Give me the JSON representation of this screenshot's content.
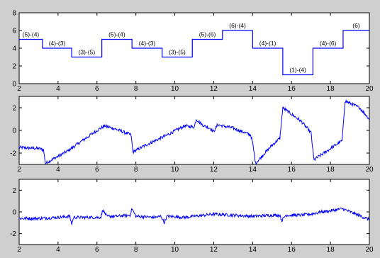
{
  "figure": {
    "background": "#cfcfcf",
    "line_color": "#0000ff",
    "axes_bg": "#ffffff"
  },
  "chart_data": [
    {
      "type": "line",
      "subtype": "step",
      "xlim": [
        2,
        20
      ],
      "ylim": [
        0,
        8
      ],
      "x_ticks": [
        "2",
        "4",
        "6",
        "8",
        "10",
        "12",
        "14",
        "16",
        "18",
        "20"
      ],
      "y_ticks": [
        "0",
        "2",
        "4",
        "6",
        "8"
      ],
      "steps": [
        {
          "x0": 2.0,
          "x1": 3.2,
          "y": 5,
          "label": "(5)-(4)"
        },
        {
          "x0": 3.2,
          "x1": 4.7,
          "y": 4,
          "label": "(4)-(3)"
        },
        {
          "x0": 4.7,
          "x1": 6.25,
          "y": 3,
          "label": "(3)-(5)"
        },
        {
          "x0": 6.25,
          "x1": 7.8,
          "y": 5,
          "label": "(5)-(4)"
        },
        {
          "x0": 7.8,
          "x1": 9.35,
          "y": 4,
          "label": "(4)-(3)"
        },
        {
          "x0": 9.35,
          "x1": 10.9,
          "y": 3,
          "label": "(3)-(5)"
        },
        {
          "x0": 10.9,
          "x1": 12.45,
          "y": 5,
          "label": "(5)-(6)"
        },
        {
          "x0": 12.45,
          "x1": 14.0,
          "y": 6,
          "label": "(6)-(4)"
        },
        {
          "x0": 14.0,
          "x1": 15.55,
          "y": 4,
          "label": "(4)-(1)"
        },
        {
          "x0": 15.55,
          "x1": 17.1,
          "y": 1,
          "label": "(1)-(4)"
        },
        {
          "x0": 17.1,
          "x1": 18.65,
          "y": 4,
          "label": "(4)-(6)"
        },
        {
          "x0": 18.65,
          "x1": 20.0,
          "y": 6,
          "label": "(6)"
        }
      ]
    },
    {
      "type": "line",
      "xlim": [
        2,
        20
      ],
      "ylim": [
        -3,
        3
      ],
      "x_ticks": [
        "2",
        "4",
        "6",
        "8",
        "10",
        "12",
        "14",
        "16",
        "18",
        "20"
      ],
      "y_ticks": [
        "-2",
        "0",
        "2"
      ],
      "x": [
        2.0,
        3.0,
        3.25,
        3.35,
        4.5,
        5.5,
        6.0,
        6.4,
        7.0,
        7.75,
        7.85,
        8.5,
        9.5,
        10.5,
        11.0,
        11.1,
        11.4,
        11.8,
        12.0,
        12.2,
        13.0,
        13.9,
        14.0,
        14.15,
        15.0,
        15.4,
        15.55,
        16.5,
        17.0,
        17.15,
        18.0,
        18.6,
        18.75,
        19.5,
        20.0
      ],
      "y": [
        -1.5,
        -1.6,
        -1.7,
        -2.9,
        -1.8,
        -0.6,
        0.0,
        0.4,
        0.1,
        -0.4,
        -1.9,
        -1.3,
        -0.5,
        0.4,
        0.3,
        1.0,
        0.5,
        0.2,
        -0.1,
        0.5,
        0.2,
        -0.4,
        -1.1,
        -2.9,
        -1.3,
        -0.7,
        2.0,
        0.8,
        -0.2,
        -2.6,
        -1.6,
        -0.9,
        2.6,
        2.0,
        1.0
      ]
    },
    {
      "type": "line",
      "xlim": [
        2,
        20
      ],
      "ylim": [
        -3,
        3
      ],
      "x_ticks": [
        "2",
        "4",
        "6",
        "8",
        "10",
        "12",
        "14",
        "16",
        "18",
        "20"
      ],
      "y_ticks": [
        "-2",
        "0",
        "2"
      ],
      "x": [
        2.0,
        3.0,
        4.0,
        4.6,
        4.7,
        4.8,
        5.5,
        6.2,
        6.3,
        6.5,
        7.0,
        7.7,
        7.8,
        8.0,
        9.0,
        9.3,
        9.45,
        9.6,
        10.5,
        11.0,
        11.5,
        12.0,
        13.0,
        14.0,
        15.0,
        15.4,
        15.5,
        15.7,
        16.5,
        17.0,
        17.5,
        18.0,
        18.6,
        19.3,
        20.0
      ],
      "y": [
        -0.6,
        -0.6,
        -0.5,
        -0.4,
        -1.1,
        -0.5,
        -0.5,
        -0.5,
        0.2,
        -0.4,
        -0.4,
        -0.3,
        0.3,
        -0.4,
        -0.5,
        -0.4,
        -1.0,
        -0.4,
        -0.5,
        -0.4,
        -0.3,
        -0.2,
        -0.3,
        -0.4,
        -0.3,
        -0.3,
        -0.8,
        -0.3,
        -0.3,
        -0.2,
        0.0,
        0.1,
        0.3,
        -0.2,
        -0.7
      ]
    }
  ]
}
